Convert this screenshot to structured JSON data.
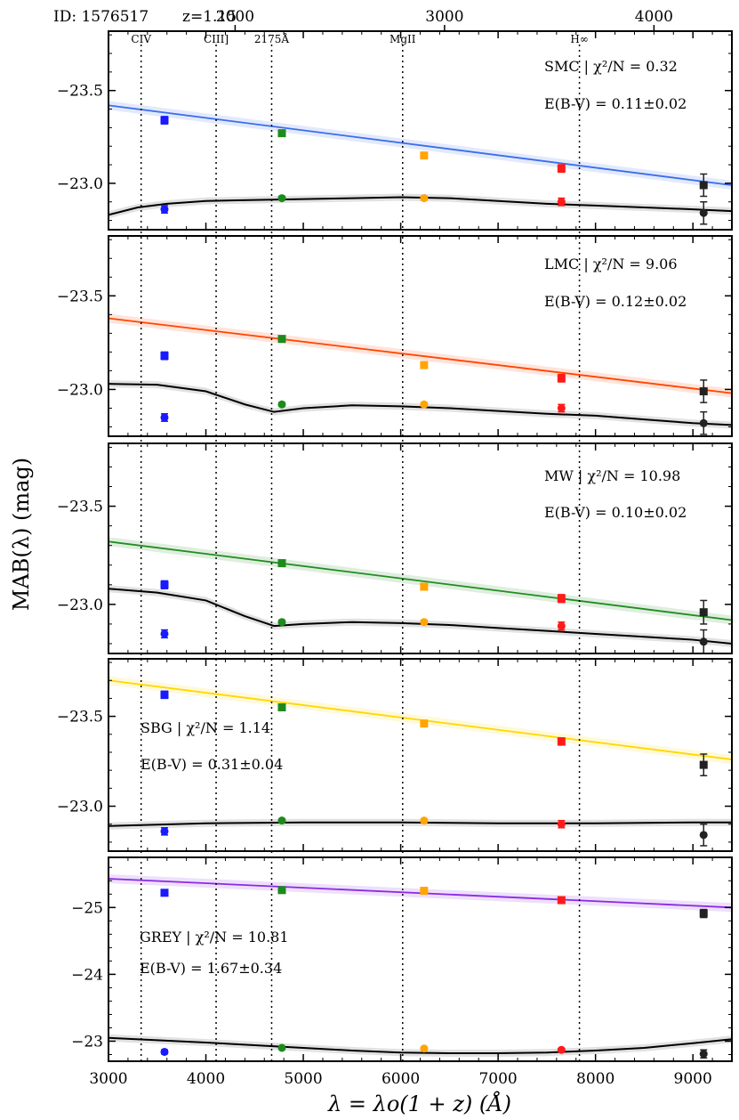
{
  "header": {
    "id_label": "ID: 1576517",
    "z_label": "z=1.15"
  },
  "xlabel": "λ = λo(1 + z) (Å)",
  "ylabel": "MAB(λ) (mag)",
  "rest_axis": {
    "ticks": [
      2000,
      3000,
      4000
    ],
    "labels": [
      "2000",
      "3000",
      "4000"
    ]
  },
  "emission_lines": [
    {
      "name": "CIV",
      "obs_wavelength": 3335
    },
    {
      "name": "CIII]",
      "obs_wavelength": 4105
    },
    {
      "name": "2175Å",
      "obs_wavelength": 4675
    },
    {
      "name": "MgII",
      "obs_wavelength": 6020
    },
    {
      "name": "H∞",
      "obs_wavelength": 7835
    }
  ],
  "colors": {
    "blue": "#1a1aff",
    "green": "#1e8a1e",
    "orange": "#ffa500",
    "red": "#ff1a1a",
    "black": "#222222"
  },
  "chart_data": [
    {
      "type": "scatter",
      "model": "SMC",
      "fit_color": "#3a6ee8",
      "stat_text": "SMC | χ²/N = 0.32",
      "ebv_text": "E(B-V) = 0.11±0.02",
      "xlim": [
        3000,
        9400
      ],
      "ylim": [
        -22.75,
        -23.82
      ],
      "yticks": [
        -23.5,
        -23.0
      ],
      "ytick_labels": [
        "−23.5",
        "−23.0"
      ],
      "fit_line": {
        "x": [
          3000,
          9400
        ],
        "y": [
          -23.42,
          -22.99
        ]
      },
      "model_curve": {
        "x": [
          3000,
          3300,
          3600,
          4000,
          4500,
          5000,
          5500,
          6000,
          6500,
          7000,
          7500,
          8000,
          8500,
          9000,
          9400
        ],
        "y": [
          -22.83,
          -22.87,
          -22.89,
          -22.905,
          -22.91,
          -22.915,
          -22.92,
          -22.925,
          -22.92,
          -22.905,
          -22.89,
          -22.88,
          -22.87,
          -22.86,
          -22.85
        ]
      },
      "observed_points": [
        {
          "x": 3575,
          "y": -23.34,
          "err": 0.02,
          "color": "#1a1aff"
        },
        {
          "x": 4780,
          "y": -23.27,
          "err": 0.01,
          "color": "#1e8a1e"
        },
        {
          "x": 6240,
          "y": -23.15,
          "err": 0.01,
          "color": "#ffa500"
        },
        {
          "x": 7650,
          "y": -23.08,
          "err": 0.02,
          "color": "#ff1a1a"
        },
        {
          "x": 9110,
          "y": -22.99,
          "err": 0.06,
          "color": "#222222"
        }
      ],
      "model_points": [
        {
          "x": 3575,
          "y": -22.86,
          "err": 0.02,
          "color": "#1a1aff"
        },
        {
          "x": 4780,
          "y": -22.92,
          "err": 0.01,
          "color": "#1e8a1e"
        },
        {
          "x": 6240,
          "y": -22.92,
          "err": 0.01,
          "color": "#ffa500"
        },
        {
          "x": 7650,
          "y": -22.9,
          "err": 0.02,
          "color": "#ff1a1a"
        },
        {
          "x": 9110,
          "y": -22.84,
          "err": 0.06,
          "color": "#222222"
        }
      ]
    },
    {
      "type": "scatter",
      "model": "LMC",
      "fit_color": "#ff4500",
      "stat_text": "LMC | χ²/N = 9.06",
      "ebv_text": "E(B-V) = 0.12±0.02",
      "xlim": [
        3000,
        9400
      ],
      "ylim": [
        -22.75,
        -23.82
      ],
      "yticks": [
        -23.5,
        -23.0
      ],
      "ytick_labels": [
        "−23.5",
        "−23.0"
      ],
      "fit_line": {
        "x": [
          3000,
          9400
        ],
        "y": [
          -23.38,
          -22.98
        ]
      },
      "model_curve": {
        "x": [
          3000,
          3500,
          4000,
          4400,
          4700,
          5000,
          5500,
          6000,
          6500,
          7000,
          7500,
          8000,
          8500,
          9000,
          9400
        ],
        "y": [
          -23.03,
          -23.025,
          -22.99,
          -22.92,
          -22.88,
          -22.9,
          -22.915,
          -22.91,
          -22.9,
          -22.885,
          -22.87,
          -22.86,
          -22.84,
          -22.82,
          -22.81
        ]
      },
      "observed_points": [
        {
          "x": 3575,
          "y": -23.18,
          "err": 0.02,
          "color": "#1a1aff"
        },
        {
          "x": 4780,
          "y": -23.27,
          "err": 0.01,
          "color": "#1e8a1e"
        },
        {
          "x": 6240,
          "y": -23.13,
          "err": 0.01,
          "color": "#ffa500"
        },
        {
          "x": 7650,
          "y": -23.06,
          "err": 0.02,
          "color": "#ff1a1a"
        },
        {
          "x": 9110,
          "y": -22.99,
          "err": 0.06,
          "color": "#222222"
        }
      ],
      "model_points": [
        {
          "x": 3575,
          "y": -22.85,
          "err": 0.02,
          "color": "#1a1aff"
        },
        {
          "x": 4780,
          "y": -22.92,
          "err": 0.01,
          "color": "#1e8a1e"
        },
        {
          "x": 6240,
          "y": -22.92,
          "err": 0.01,
          "color": "#ffa500"
        },
        {
          "x": 7650,
          "y": -22.9,
          "err": 0.02,
          "color": "#ff1a1a"
        },
        {
          "x": 9110,
          "y": -22.82,
          "err": 0.06,
          "color": "#222222"
        }
      ]
    },
    {
      "type": "scatter",
      "model": "MW",
      "fit_color": "#228b22",
      "stat_text": "MW | χ²/N = 10.98",
      "ebv_text": "E(B-V) = 0.10±0.02",
      "xlim": [
        3000,
        9400
      ],
      "ylim": [
        -22.75,
        -23.82
      ],
      "yticks": [
        -23.5,
        -23.0
      ],
      "ytick_labels": [
        "−23.5",
        "−23.0"
      ],
      "fit_line": {
        "x": [
          3000,
          9400
        ],
        "y": [
          -23.32,
          -22.92
        ]
      },
      "model_curve": {
        "x": [
          3000,
          3500,
          4000,
          4400,
          4700,
          5000,
          5500,
          6000,
          6500,
          7000,
          7500,
          8000,
          8500,
          9000,
          9400
        ],
        "y": [
          -23.08,
          -23.06,
          -23.02,
          -22.94,
          -22.89,
          -22.9,
          -22.91,
          -22.905,
          -22.895,
          -22.88,
          -22.865,
          -22.85,
          -22.835,
          -22.82,
          -22.8
        ]
      },
      "observed_points": [
        {
          "x": 3575,
          "y": -23.1,
          "err": 0.02,
          "color": "#1a1aff"
        },
        {
          "x": 4780,
          "y": -23.21,
          "err": 0.01,
          "color": "#1e8a1e"
        },
        {
          "x": 6240,
          "y": -23.09,
          "err": 0.01,
          "color": "#ffa500"
        },
        {
          "x": 7650,
          "y": -23.03,
          "err": 0.02,
          "color": "#ff1a1a"
        },
        {
          "x": 9110,
          "y": -22.96,
          "err": 0.06,
          "color": "#222222"
        }
      ],
      "model_points": [
        {
          "x": 3575,
          "y": -22.85,
          "err": 0.02,
          "color": "#1a1aff"
        },
        {
          "x": 4780,
          "y": -22.91,
          "err": 0.01,
          "color": "#1e8a1e"
        },
        {
          "x": 6240,
          "y": -22.91,
          "err": 0.01,
          "color": "#ffa500"
        },
        {
          "x": 7650,
          "y": -22.89,
          "err": 0.02,
          "color": "#ff1a1a"
        },
        {
          "x": 9110,
          "y": -22.81,
          "err": 0.06,
          "color": "#222222"
        }
      ]
    },
    {
      "type": "scatter",
      "model": "SBG",
      "fit_color": "#ffd700",
      "stat_text": "SBG | χ²/N = 1.14",
      "ebv_text": "E(B-V) = 0.31±0.04",
      "xlim": [
        3000,
        9400
      ],
      "ylim": [
        -22.75,
        -23.82
      ],
      "yticks": [
        -23.5,
        -23.0
      ],
      "ytick_labels": [
        "−23.5",
        "−23.0"
      ],
      "fit_line": {
        "x": [
          3000,
          9400
        ],
        "y": [
          -23.7,
          -23.26
        ]
      },
      "model_curve": {
        "x": [
          3000,
          4000,
          5000,
          6000,
          7000,
          8000,
          9000,
          9400
        ],
        "y": [
          -22.89,
          -22.905,
          -22.91,
          -22.91,
          -22.905,
          -22.905,
          -22.91,
          -22.91
        ]
      },
      "observed_points": [
        {
          "x": 3575,
          "y": -23.62,
          "err": 0.02,
          "color": "#1a1aff"
        },
        {
          "x": 4780,
          "y": -23.55,
          "err": 0.01,
          "color": "#1e8a1e"
        },
        {
          "x": 6240,
          "y": -23.46,
          "err": 0.01,
          "color": "#ffa500"
        },
        {
          "x": 7650,
          "y": -23.36,
          "err": 0.02,
          "color": "#ff1a1a"
        },
        {
          "x": 9110,
          "y": -23.23,
          "err": 0.06,
          "color": "#222222"
        }
      ],
      "model_points": [
        {
          "x": 3575,
          "y": -22.86,
          "err": 0.02,
          "color": "#1a1aff"
        },
        {
          "x": 4780,
          "y": -22.92,
          "err": 0.01,
          "color": "#1e8a1e"
        },
        {
          "x": 6240,
          "y": -22.92,
          "err": 0.01,
          "color": "#ffa500"
        },
        {
          "x": 7650,
          "y": -22.9,
          "err": 0.02,
          "color": "#ff1a1a"
        },
        {
          "x": 9110,
          "y": -22.84,
          "err": 0.06,
          "color": "#222222"
        }
      ]
    },
    {
      "type": "scatter",
      "model": "GREY",
      "fit_color": "#8a2be2",
      "stat_text": "GREY | χ²/N = 10.81",
      "ebv_text": "E(B-V) = 1.67±0.34",
      "xlim": [
        3000,
        9400
      ],
      "ylim": [
        -22.7,
        -25.75
      ],
      "yticks": [
        -25,
        -24,
        -23
      ],
      "ytick_labels": [
        "−25",
        "−24",
        "−23"
      ],
      "fit_line": {
        "x": [
          3000,
          9400
        ],
        "y": [
          -25.43,
          -25.0
        ]
      },
      "model_curve": {
        "x": [
          3000,
          4000,
          5000,
          5500,
          6000,
          6500,
          7000,
          7500,
          8000,
          8500,
          9000,
          9400
        ],
        "y": [
          -23.05,
          -22.98,
          -22.9,
          -22.86,
          -22.83,
          -22.82,
          -22.82,
          -22.83,
          -22.86,
          -22.9,
          -22.97,
          -23.03
        ]
      },
      "observed_points": [
        {
          "x": 3575,
          "y": -25.22,
          "err": 0.04,
          "color": "#1a1aff"
        },
        {
          "x": 4780,
          "y": -25.26,
          "err": 0.04,
          "color": "#1e8a1e"
        },
        {
          "x": 6240,
          "y": -25.25,
          "err": 0.04,
          "color": "#ffa500"
        },
        {
          "x": 7650,
          "y": -25.11,
          "err": 0.04,
          "color": "#ff1a1a"
        },
        {
          "x": 9110,
          "y": -24.91,
          "err": 0.06,
          "color": "#222222"
        }
      ],
      "model_points": [
        {
          "x": 3575,
          "y": -22.84,
          "err": 0.03,
          "color": "#1a1aff"
        },
        {
          "x": 4780,
          "y": -22.9,
          "err": 0.02,
          "color": "#1e8a1e"
        },
        {
          "x": 6240,
          "y": -22.89,
          "err": 0.02,
          "color": "#ffa500"
        },
        {
          "x": 7650,
          "y": -22.87,
          "err": 0.02,
          "color": "#ff1a1a"
        },
        {
          "x": 9110,
          "y": -22.81,
          "err": 0.06,
          "color": "#222222"
        }
      ]
    }
  ],
  "xaxis": {
    "ticks": [
      3000,
      4000,
      5000,
      6000,
      7000,
      8000,
      9000
    ],
    "labels": [
      "3000",
      "4000",
      "5000",
      "6000",
      "7000",
      "8000",
      "9000"
    ]
  }
}
